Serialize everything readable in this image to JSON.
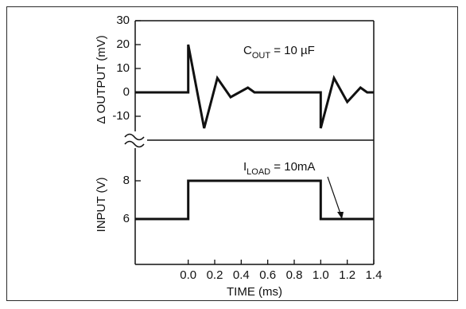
{
  "chart_data": {
    "type": "line",
    "x_ticks": [
      "0.0",
      "0.2",
      "0.4",
      "0.6",
      "0.8",
      "1.0",
      "1.2",
      "1.4"
    ],
    "xlabel": "TIME (ms)",
    "xlim": [
      -0.4,
      1.4
    ],
    "upper": {
      "ylabel": "Δ OUTPUT (mV)",
      "y_ticks": [
        "30",
        "20",
        "10",
        "0",
        "-10"
      ],
      "ylim": [
        -15,
        30
      ],
      "annotation": {
        "main": "C",
        "sub": "OUT",
        "rest": " = 10 µF"
      },
      "series": [
        {
          "x": [
            -0.4,
            0.0,
            0.0,
            0.12,
            0.22,
            0.32,
            0.45,
            0.5,
            0.62,
            0.98,
            1.0,
            1.0,
            1.1,
            1.2,
            1.3,
            1.35,
            1.4
          ],
          "y": [
            0,
            0,
            20,
            -15,
            6,
            -2,
            2,
            0,
            0,
            0,
            0,
            -15,
            6,
            -4,
            2,
            0,
            0
          ]
        }
      ]
    },
    "lower": {
      "ylabel": "INPUT (V)",
      "y_ticks": [
        "8",
        "6"
      ],
      "ylim": [
        4,
        9
      ],
      "annotation": {
        "main": "I",
        "sub": "LOAD",
        "rest": " = 10mA"
      },
      "series": [
        {
          "x": [
            -0.4,
            0.0,
            0.0,
            1.0,
            1.0,
            1.4
          ],
          "y": [
            6,
            6,
            8,
            8,
            6,
            6
          ]
        }
      ]
    },
    "grid": false,
    "axis_break": true
  }
}
